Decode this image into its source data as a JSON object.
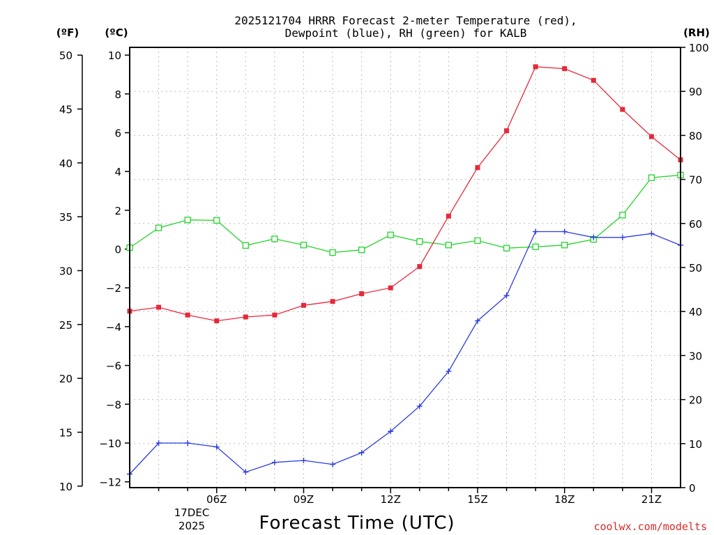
{
  "chart_data": {
    "type": "line",
    "title": [
      "2025121704 HRRR Forecast 2-meter Temperature (red),",
      "Dewpoint (blue), RH (green) for KALB"
    ],
    "units": {
      "fahrenheit": "(ºF)",
      "celsius": "(ºC)",
      "rh": "(RH)"
    },
    "xlabel": "Forecast Time (UTC)",
    "credit": "coolwx.com/modelts",
    "date_label": [
      "17DEC",
      "2025"
    ],
    "x_hours": [
      3,
      4,
      5,
      6,
      7,
      8,
      9,
      10,
      11,
      12,
      13,
      14,
      15,
      16,
      17,
      18,
      19,
      20,
      21,
      22
    ],
    "xlim": [
      3,
      22
    ],
    "x_ticks": [
      {
        "hour": 6,
        "label": "06Z"
      },
      {
        "hour": 9,
        "label": "09Z"
      },
      {
        "hour": 12,
        "label": "12Z"
      },
      {
        "hour": 15,
        "label": "15Z"
      },
      {
        "hour": 18,
        "label": "18Z"
      },
      {
        "hour": 21,
        "label": "21Z"
      }
    ],
    "ylim_celsius": [
      -12.3,
      10.4
    ],
    "y_ticks_celsius": [
      10,
      8,
      6,
      4,
      2,
      0,
      -2,
      -4,
      -6,
      -8,
      -10,
      -12
    ],
    "y_ticks_fahrenheit": [
      50,
      45,
      40,
      35,
      30,
      25,
      20,
      15,
      10
    ],
    "ylim_rh": [
      0,
      100
    ],
    "y_ticks_rh": [
      0,
      10,
      20,
      30,
      40,
      50,
      60,
      70,
      80,
      90,
      100
    ],
    "grid": true,
    "series": [
      {
        "name": "Temperature",
        "axis": "celsius",
        "color": "#e8283a",
        "marker": "filled-square",
        "values": [
          -3.2,
          -3.0,
          -3.4,
          -3.7,
          -3.5,
          -3.4,
          -2.9,
          -2.7,
          -2.3,
          -2.0,
          -0.9,
          1.7,
          4.2,
          6.1,
          9.4,
          9.3,
          8.7,
          7.2,
          5.8,
          4.6
        ]
      },
      {
        "name": "Dewpoint",
        "axis": "celsius",
        "color": "#2b3ce0",
        "marker": "plus",
        "values": [
          -11.6,
          -10.0,
          -10.0,
          -10.2,
          -11.5,
          -11.0,
          -10.9,
          -11.1,
          -10.5,
          -9.4,
          -8.1,
          -6.3,
          -3.7,
          -2.4,
          0.9,
          0.9,
          0.6,
          0.6,
          0.8,
          0.2
        ]
      },
      {
        "name": "RH",
        "axis": "rh",
        "color": "#22d42a",
        "marker": "open-square",
        "values": [
          54.5,
          59.0,
          60.8,
          60.7,
          55.0,
          56.5,
          55.1,
          53.4,
          54.0,
          57.4,
          55.9,
          55.1,
          56.1,
          54.4,
          54.7,
          55.1,
          56.4,
          61.9,
          70.4,
          71.0
        ]
      }
    ]
  }
}
